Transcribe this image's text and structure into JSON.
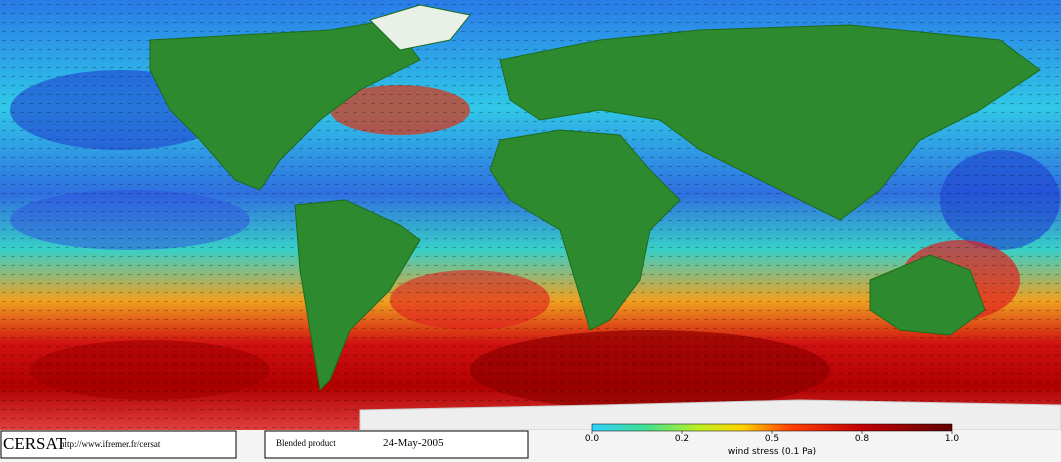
{
  "logo": "CERSAT",
  "url": "http://www.ifremer.fr/cersat",
  "product": "Blended product",
  "date": "24-May-2005",
  "colorbar": {
    "label": "wind stress (0.1 Pa)",
    "ticks": [
      {
        "value": 0.0,
        "label": "0.0"
      },
      0.2,
      0.5,
      0.8,
      {
        "value": 1.0,
        "label": "1.0"
      }
    ]
  }
}
